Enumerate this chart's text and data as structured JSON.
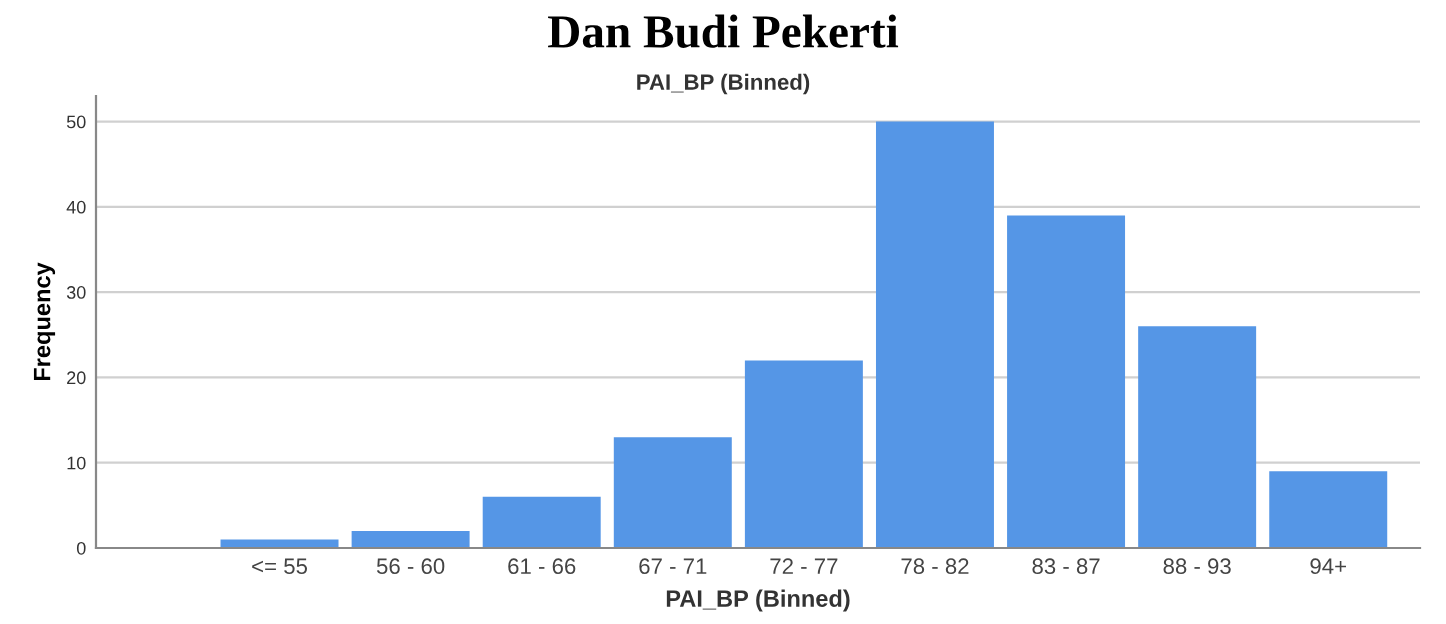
{
  "chart_data": {
    "type": "bar",
    "title": "Dan Budi Pekerti",
    "subtitle": "PAI_BP (Binned)",
    "xlabel": "PAI_BP (Binned)",
    "ylabel": "Frequency",
    "categories": [
      "<= 55",
      "56 - 60",
      "61 - 66",
      "67 - 71",
      "72 - 77",
      "78 - 82",
      "83 - 87",
      "88 - 93",
      "94+"
    ],
    "values": [
      1,
      2,
      6,
      13,
      22,
      50,
      39,
      26,
      9
    ],
    "color": "#5596e6",
    "ylim": [
      0,
      53
    ],
    "yticks": [
      0,
      10,
      20,
      30,
      40,
      50
    ],
    "grid": "y"
  }
}
